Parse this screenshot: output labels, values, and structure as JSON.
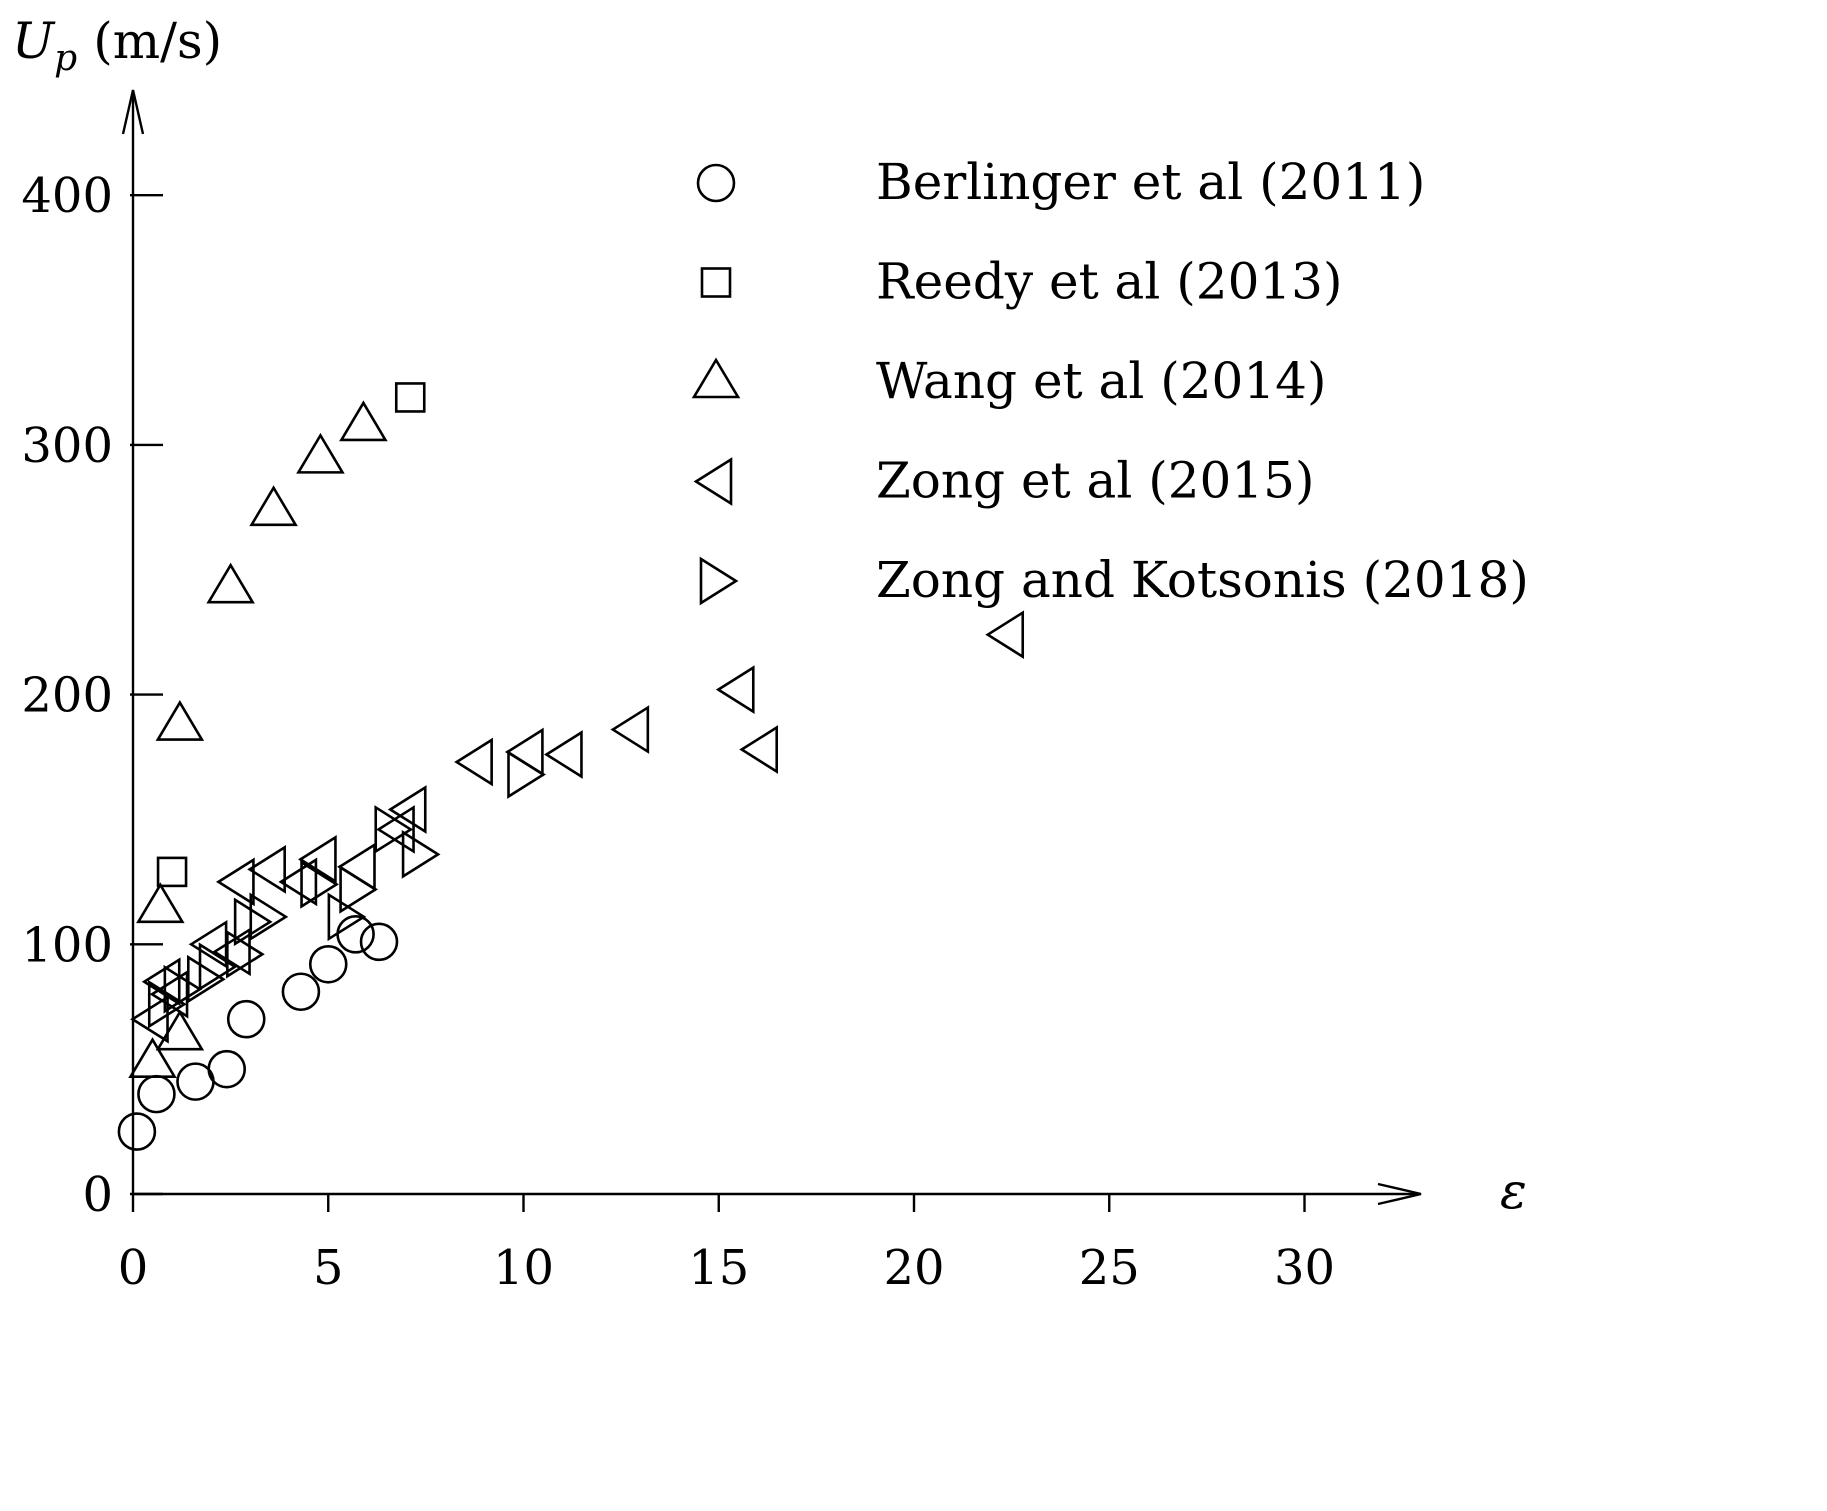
{
  "chart_data": {
    "type": "scatter",
    "title": "",
    "xlabel": "ε",
    "ylabel_main": "U",
    "ylabel_sub": "p",
    "ylabel_unit": "(m/s)",
    "xlim": [
      0,
      33
    ],
    "ylim": [
      0,
      430
    ],
    "x_ticks": [
      0,
      5,
      10,
      15,
      20,
      25,
      30
    ],
    "y_ticks": [
      0,
      100,
      200,
      300,
      400
    ],
    "x_tick_labels": [
      "0",
      "5",
      "10",
      "15",
      "20",
      "25",
      "30"
    ],
    "y_tick_labels": [
      "0",
      "100",
      "200",
      "300",
      "400"
    ],
    "legend_position": "top-right",
    "series": [
      {
        "name": "Berlinger et al (2011)",
        "marker": "circle",
        "points": [
          [
            0.1,
            25
          ],
          [
            0.6,
            40
          ],
          [
            1.6,
            45
          ],
          [
            2.4,
            50
          ],
          [
            2.9,
            70
          ],
          [
            4.3,
            81
          ],
          [
            5.0,
            92
          ],
          [
            5.7,
            104
          ],
          [
            6.3,
            101
          ]
        ]
      },
      {
        "name": "Reedy et al (2013)",
        "marker": "square",
        "points": [
          [
            1.0,
            129
          ],
          [
            7.1,
            319
          ]
        ]
      },
      {
        "name": "Wang et al (2014)",
        "marker": "triangle-up",
        "points": [
          [
            0.5,
            53
          ],
          [
            0.7,
            115
          ],
          [
            1.2,
            64
          ],
          [
            1.2,
            188
          ],
          [
            2.5,
            243
          ],
          [
            3.6,
            274
          ],
          [
            4.8,
            295
          ],
          [
            5.9,
            308
          ]
        ]
      },
      {
        "name": "Zong et al (2015)",
        "marker": "triangle-left",
        "points": [
          [
            0.5,
            70
          ],
          [
            0.8,
            85
          ],
          [
            1.0,
            80
          ],
          [
            2.0,
            100
          ],
          [
            2.6,
            97
          ],
          [
            2.7,
            125
          ],
          [
            3.5,
            130
          ],
          [
            4.3,
            125
          ],
          [
            4.8,
            134
          ],
          [
            5.8,
            131
          ],
          [
            6.8,
            146
          ],
          [
            7.1,
            154
          ],
          [
            8.8,
            173
          ],
          [
            10.1,
            177
          ],
          [
            11.1,
            176
          ],
          [
            12.8,
            186
          ],
          [
            15.5,
            202
          ],
          [
            16.1,
            178
          ],
          [
            22.4,
            224
          ]
        ]
      },
      {
        "name": "Zong and Kotsonis (2018)",
        "marker": "triangle-right",
        "points": [
          [
            0.8,
            76
          ],
          [
            1.2,
            82
          ],
          [
            1.8,
            86
          ],
          [
            2.1,
            91
          ],
          [
            2.8,
            96
          ],
          [
            3.0,
            109
          ],
          [
            3.4,
            111
          ],
          [
            4.7,
            124
          ],
          [
            5.4,
            111
          ],
          [
            5.7,
            122
          ],
          [
            6.6,
            146
          ],
          [
            7.3,
            136
          ],
          [
            10.0,
            168
          ]
        ]
      }
    ]
  }
}
